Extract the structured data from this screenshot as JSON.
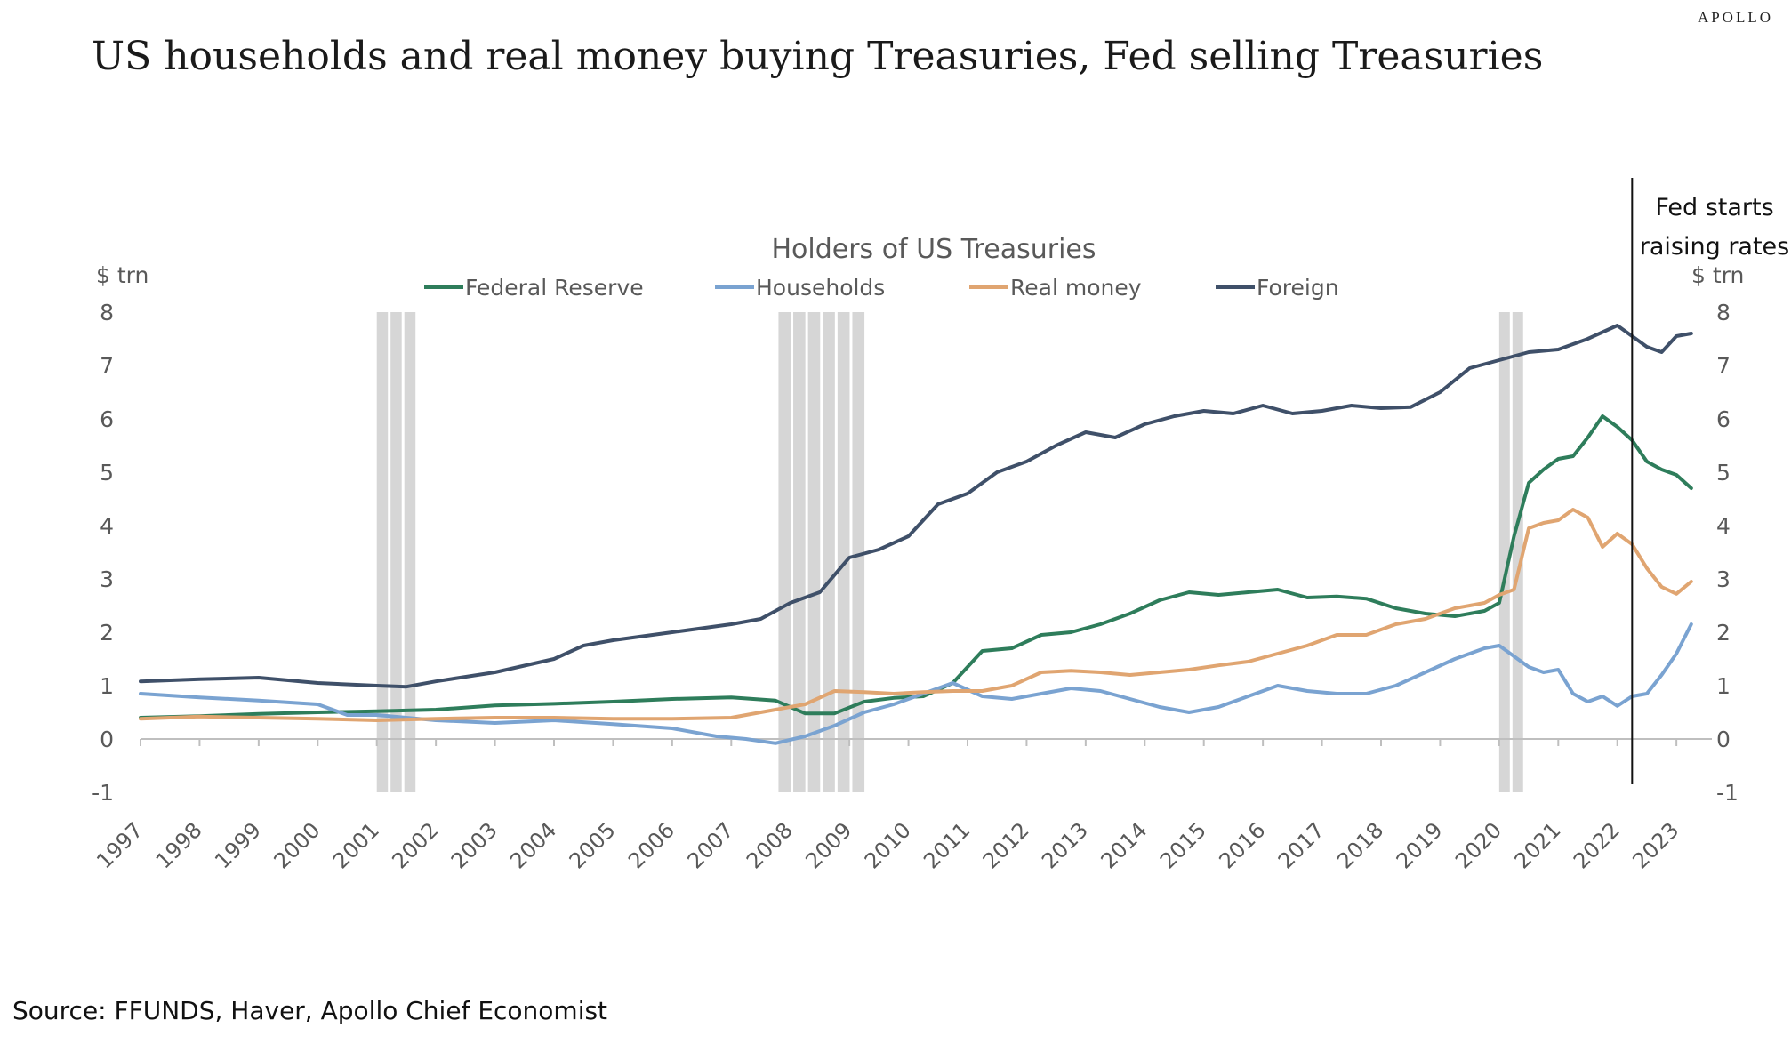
{
  "brand": "APOLLO",
  "headline": "US households and real money buying Treasuries, Fed selling Treasuries",
  "source": "Source: FFUNDS, Haver, Apollo Chief Economist",
  "chart_data": {
    "type": "line",
    "title": "Holders of US Treasuries",
    "ylabel_left": "$ trn",
    "ylabel_right": "$ trn",
    "ylim": [
      -1,
      8
    ],
    "yticks": [
      -1,
      0,
      1,
      2,
      3,
      4,
      5,
      6,
      7,
      8
    ],
    "xlim": [
      1997,
      2023.6
    ],
    "xticks": [
      1997,
      1998,
      1999,
      2000,
      2001,
      2002,
      2003,
      2004,
      2005,
      2006,
      2007,
      2008,
      2009,
      2010,
      2011,
      2012,
      2013,
      2014,
      2015,
      2016,
      2017,
      2018,
      2019,
      2020,
      2021,
      2022,
      2023
    ],
    "grid": false,
    "legend_position": "top",
    "annotation": {
      "x": 2022.25,
      "text_lines": [
        "Fed starts",
        "raising rates"
      ]
    },
    "recessions": [
      [
        2001.0,
        2001.7
      ],
      [
        2007.8,
        2009.3
      ],
      [
        2020.0,
        2020.45
      ]
    ],
    "colors": {
      "recession": "#d6d6d6",
      "axis_text": "#595959"
    },
    "series": [
      {
        "name": "Federal Reserve",
        "color": "#2e7d5b",
        "x": [
          1997,
          1998,
          1999,
          2000,
          2001,
          2002,
          2003,
          2004,
          2005,
          2006,
          2007,
          2007.75,
          2008.25,
          2008.75,
          2009.25,
          2009.75,
          2010.25,
          2010.75,
          2011.25,
          2011.75,
          2012.25,
          2012.75,
          2013.25,
          2013.75,
          2014.25,
          2014.75,
          2015.25,
          2015.75,
          2016.25,
          2016.75,
          2017.25,
          2017.75,
          2018.25,
          2018.75,
          2019.25,
          2019.75,
          2020.0,
          2020.25,
          2020.5,
          2020.75,
          2021.0,
          2021.25,
          2021.5,
          2021.75,
          2022.0,
          2022.25,
          2022.5,
          2022.75,
          2023.0,
          2023.25
        ],
        "values": [
          0.4,
          0.43,
          0.47,
          0.5,
          0.52,
          0.55,
          0.63,
          0.66,
          0.7,
          0.75,
          0.78,
          0.72,
          0.48,
          0.48,
          0.7,
          0.77,
          0.8,
          1.05,
          1.65,
          1.7,
          1.95,
          2.0,
          2.15,
          2.35,
          2.6,
          2.75,
          2.7,
          2.75,
          2.8,
          2.65,
          2.67,
          2.63,
          2.45,
          2.35,
          2.3,
          2.4,
          2.55,
          3.8,
          4.8,
          5.05,
          5.25,
          5.3,
          5.65,
          6.05,
          5.85,
          5.6,
          5.2,
          5.05,
          4.95,
          4.7
        ]
      },
      {
        "name": "Households",
        "color": "#7aa3d1",
        "x": [
          1997,
          1998,
          1999,
          2000,
          2000.5,
          2001,
          2002,
          2003,
          2004,
          2005,
          2006,
          2006.75,
          2007.25,
          2007.75,
          2008.25,
          2008.75,
          2009.25,
          2009.75,
          2010.25,
          2010.75,
          2011.25,
          2011.75,
          2012.25,
          2012.75,
          2013.25,
          2013.75,
          2014.25,
          2014.75,
          2015.25,
          2015.75,
          2016.25,
          2016.75,
          2017.25,
          2017.75,
          2018.25,
          2018.75,
          2019.25,
          2019.75,
          2020.0,
          2020.25,
          2020.5,
          2020.75,
          2021.0,
          2021.25,
          2021.5,
          2021.75,
          2022.0,
          2022.25,
          2022.5,
          2022.75,
          2023.0,
          2023.25
        ],
        "values": [
          0.85,
          0.78,
          0.72,
          0.65,
          0.45,
          0.45,
          0.35,
          0.3,
          0.35,
          0.28,
          0.2,
          0.05,
          0.0,
          -0.08,
          0.05,
          0.25,
          0.5,
          0.65,
          0.85,
          1.05,
          0.8,
          0.75,
          0.85,
          0.95,
          0.9,
          0.75,
          0.6,
          0.5,
          0.6,
          0.8,
          1.0,
          0.9,
          0.85,
          0.85,
          1.0,
          1.25,
          1.5,
          1.7,
          1.75,
          1.55,
          1.35,
          1.25,
          1.3,
          0.85,
          0.7,
          0.8,
          0.62,
          0.8,
          0.85,
          1.2,
          1.6,
          2.15
        ]
      },
      {
        "name": "Real money",
        "color": "#e0a571",
        "x": [
          1997,
          1998,
          1999,
          2000,
          2001,
          2002,
          2003,
          2004,
          2005,
          2006,
          2007,
          2007.75,
          2008.25,
          2008.75,
          2009.25,
          2009.75,
          2010.25,
          2010.75,
          2011.25,
          2011.75,
          2012.25,
          2012.75,
          2013.25,
          2013.75,
          2014.25,
          2014.75,
          2015.25,
          2015.75,
          2016.25,
          2016.75,
          2017.25,
          2017.75,
          2018.25,
          2018.75,
          2019.25,
          2019.75,
          2020.0,
          2020.25,
          2020.5,
          2020.75,
          2021.0,
          2021.25,
          2021.5,
          2021.75,
          2022.0,
          2022.25,
          2022.5,
          2022.75,
          2023.0,
          2023.25
        ],
        "values": [
          0.38,
          0.42,
          0.4,
          0.38,
          0.35,
          0.38,
          0.4,
          0.4,
          0.38,
          0.38,
          0.4,
          0.55,
          0.65,
          0.9,
          0.88,
          0.85,
          0.88,
          0.9,
          0.9,
          1.0,
          1.25,
          1.28,
          1.25,
          1.2,
          1.25,
          1.3,
          1.38,
          1.45,
          1.6,
          1.75,
          1.95,
          1.95,
          2.15,
          2.25,
          2.45,
          2.55,
          2.7,
          2.8,
          3.95,
          4.05,
          4.1,
          4.3,
          4.15,
          3.6,
          3.85,
          3.65,
          3.2,
          2.85,
          2.72,
          2.95
        ]
      },
      {
        "name": "Foreign",
        "color": "#3f5069",
        "x": [
          1997,
          1998,
          1999,
          2000,
          2001,
          2001.5,
          2002,
          2003,
          2004,
          2004.5,
          2005,
          2006,
          2007,
          2007.5,
          2008,
          2008.5,
          2009,
          2009.5,
          2010,
          2010.5,
          2011,
          2011.5,
          2012,
          2012.5,
          2013,
          2013.5,
          2014,
          2014.5,
          2015,
          2015.5,
          2016,
          2016.5,
          2017,
          2017.5,
          2018,
          2018.5,
          2019,
          2019.5,
          2020,
          2020.5,
          2021,
          2021.5,
          2022,
          2022.25,
          2022.5,
          2022.75,
          2023,
          2023.25
        ],
        "values": [
          1.08,
          1.12,
          1.15,
          1.05,
          1.0,
          0.98,
          1.08,
          1.25,
          1.5,
          1.75,
          1.85,
          2.0,
          2.15,
          2.25,
          2.55,
          2.75,
          3.4,
          3.55,
          3.8,
          4.4,
          4.6,
          5.0,
          5.2,
          5.5,
          5.75,
          5.65,
          5.9,
          6.05,
          6.15,
          6.1,
          6.25,
          6.1,
          6.15,
          6.25,
          6.2,
          6.22,
          6.5,
          6.95,
          7.1,
          7.25,
          7.3,
          7.5,
          7.75,
          7.55,
          7.35,
          7.25,
          7.55,
          7.6
        ]
      }
    ]
  }
}
